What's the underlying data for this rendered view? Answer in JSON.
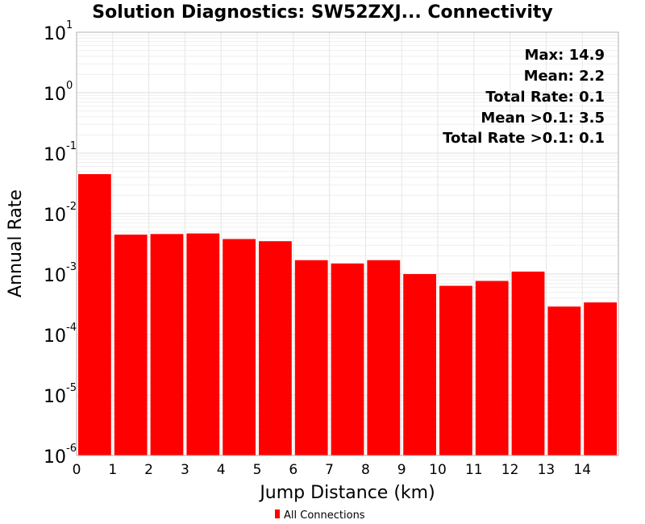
{
  "chart_data": {
    "type": "bar",
    "title": "Solution Diagnostics: SW52ZXJ... Connectivity",
    "xlabel": "Jump Distance (km)",
    "ylabel": "Annual Rate",
    "y_scale": "log",
    "ylim": [
      1e-06,
      10
    ],
    "xlim": [
      0,
      15
    ],
    "grid": true,
    "x_tick_labels": [
      "0",
      "1",
      "2",
      "3",
      "4",
      "5",
      "6",
      "7",
      "8",
      "9",
      "10",
      "11",
      "12",
      "13",
      "14"
    ],
    "y_tick_labels": [
      {
        "base": "10",
        "exp": "1"
      },
      {
        "base": "10",
        "exp": "0"
      },
      {
        "base": "10",
        "exp": "-1"
      },
      {
        "base": "10",
        "exp": "-2"
      },
      {
        "base": "10",
        "exp": "-3"
      },
      {
        "base": "10",
        "exp": "-4"
      },
      {
        "base": "10",
        "exp": "-5"
      },
      {
        "base": "10",
        "exp": "-6"
      }
    ],
    "bar_color": "#ff0000",
    "series": [
      {
        "name": "All Connections",
        "bins": [
          {
            "x0": 0,
            "x1": 1,
            "value": 0.045
          },
          {
            "x0": 1,
            "x1": 2,
            "value": 0.0045
          },
          {
            "x0": 2,
            "x1": 3,
            "value": 0.0046
          },
          {
            "x0": 3,
            "x1": 4,
            "value": 0.0047
          },
          {
            "x0": 4,
            "x1": 5,
            "value": 0.0038
          },
          {
            "x0": 5,
            "x1": 6,
            "value": 0.0035
          },
          {
            "x0": 6,
            "x1": 7,
            "value": 0.0017
          },
          {
            "x0": 7,
            "x1": 8,
            "value": 0.0015
          },
          {
            "x0": 8,
            "x1": 9,
            "value": 0.0017
          },
          {
            "x0": 9,
            "x1": 10,
            "value": 0.001
          },
          {
            "x0": 10,
            "x1": 11,
            "value": 0.00064
          },
          {
            "x0": 11,
            "x1": 12,
            "value": 0.00077
          },
          {
            "x0": 12,
            "x1": 13,
            "value": 0.0011
          },
          {
            "x0": 13,
            "x1": 14,
            "value": 0.00029
          },
          {
            "x0": 14,
            "x1": 15,
            "value": 0.00034
          }
        ]
      }
    ],
    "annotations": [
      "Max: 14.9",
      "Mean: 2.2",
      "Total Rate: 0.1",
      "Mean >0.1: 3.5",
      "Total Rate >0.1: 0.1"
    ],
    "legend_position": "bottom"
  }
}
